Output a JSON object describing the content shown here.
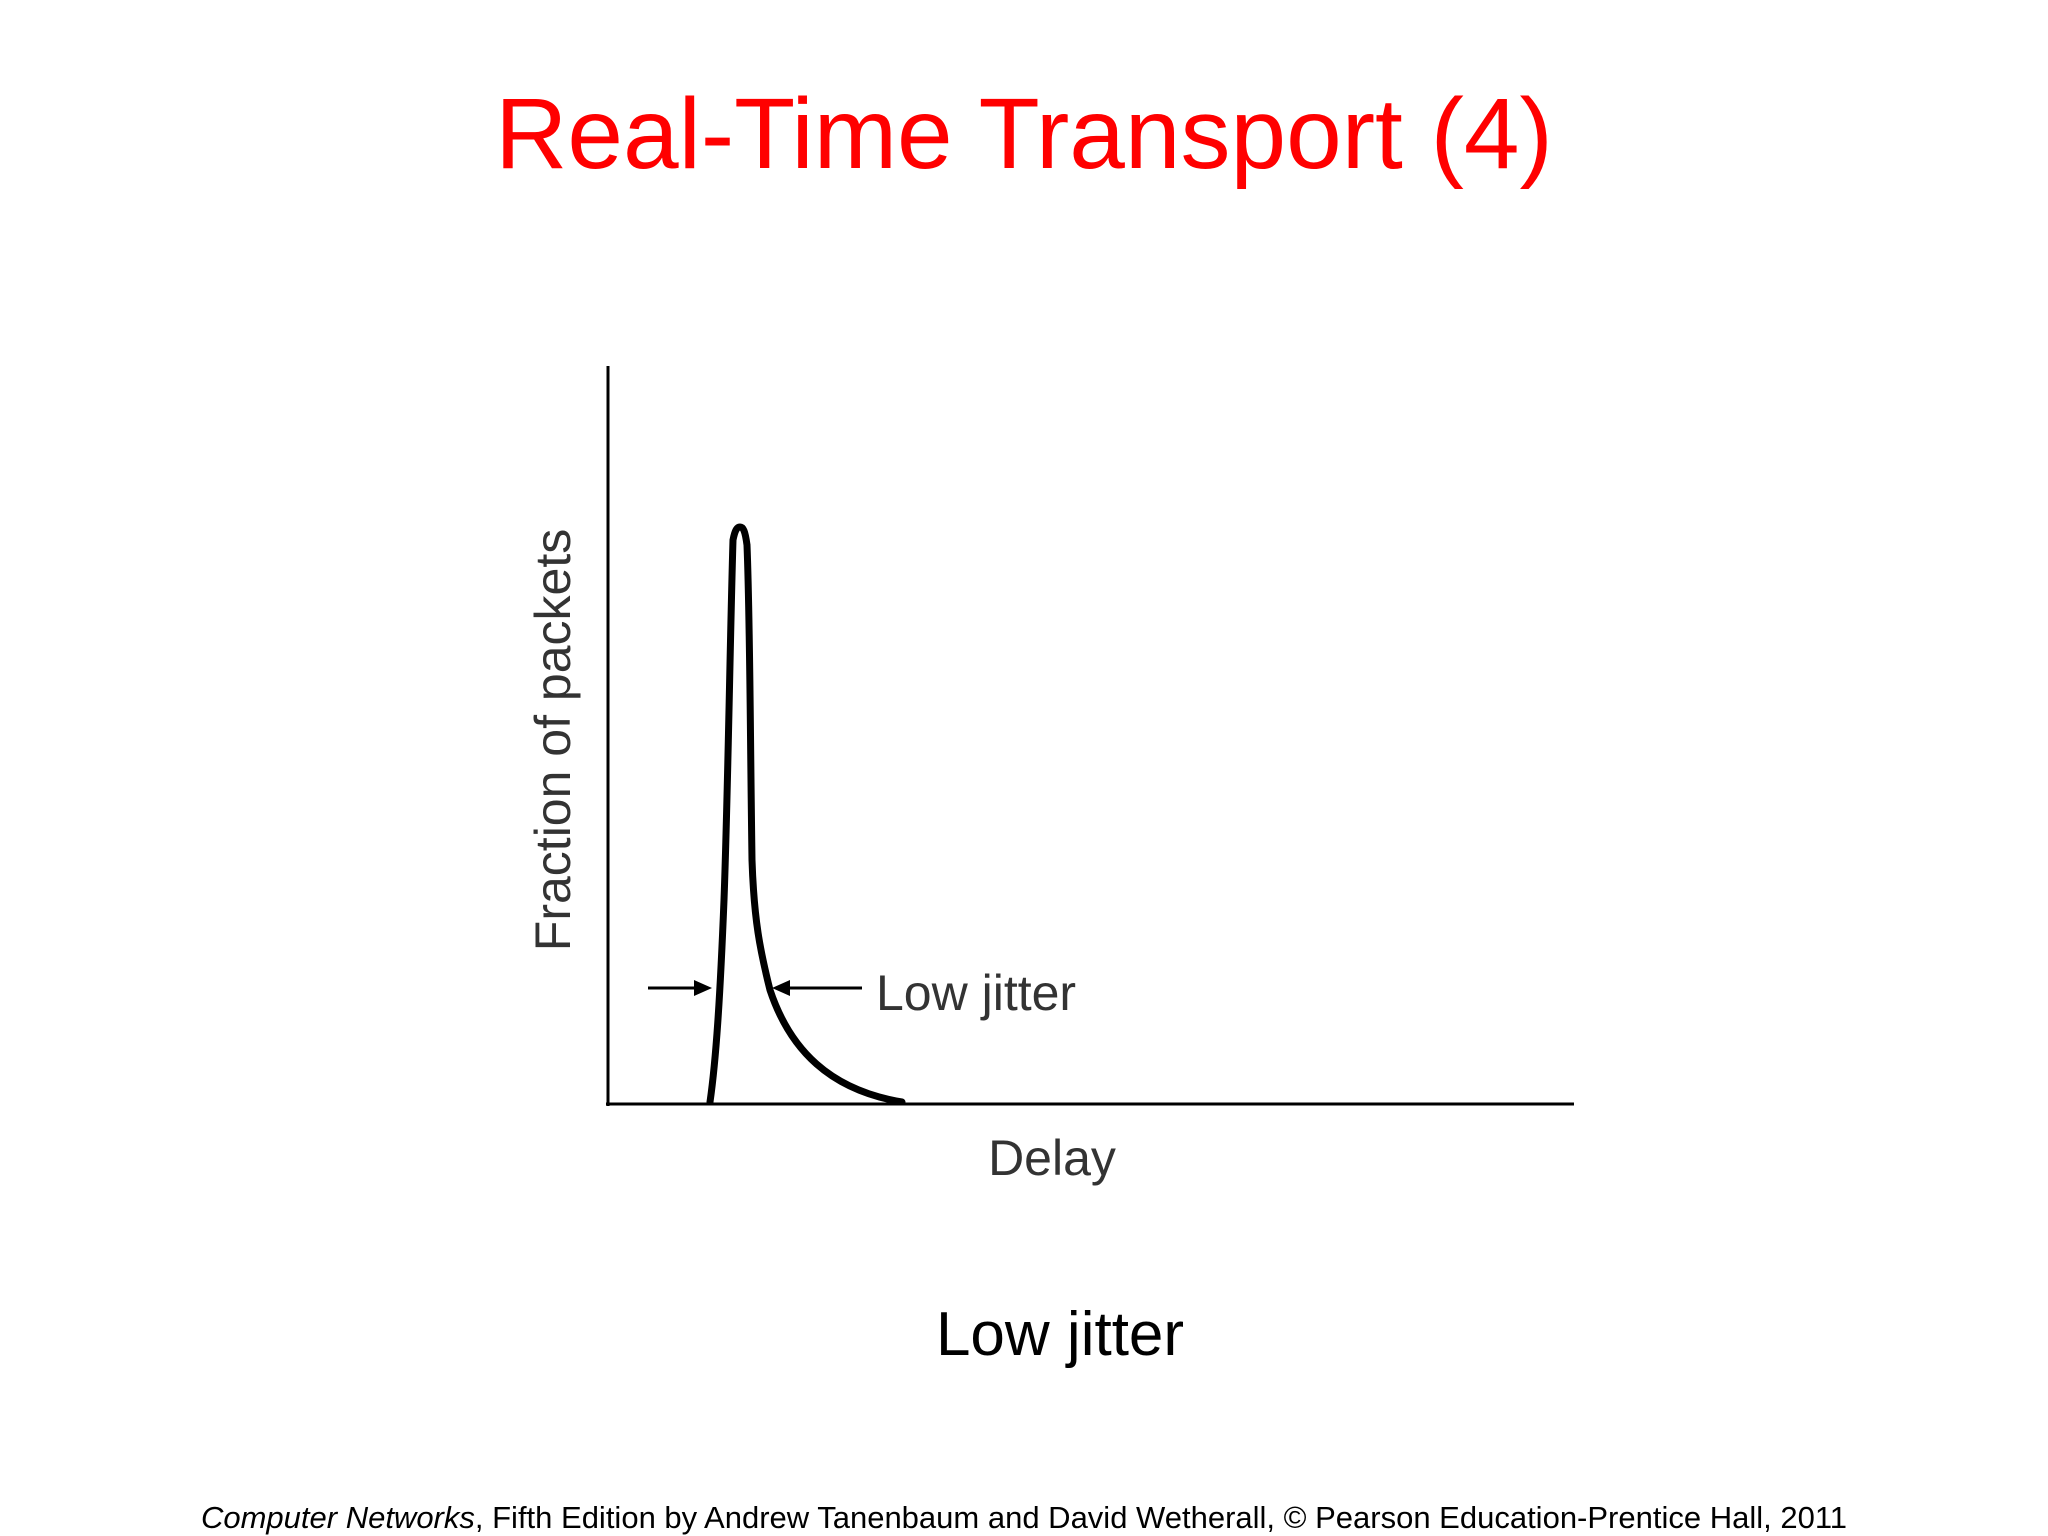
{
  "slide": {
    "title": "Real-Time Transport (4)",
    "caption": "Low jitter"
  },
  "figure": {
    "y_axis_label": "Fraction of packets",
    "x_axis_label": "Delay",
    "annotation": "Low jitter",
    "curve_description_shape": "narrow-peak-distribution"
  },
  "footer": {
    "book_title": "Computer Networks",
    "rest": ", Fifth Edition by Andrew Tanenbaum and David Wetherall, © Pearson Education-Prentice Hall, 2011"
  },
  "colors": {
    "title": "#ff0000",
    "text": "#000000",
    "figure_ink": "#000000"
  }
}
